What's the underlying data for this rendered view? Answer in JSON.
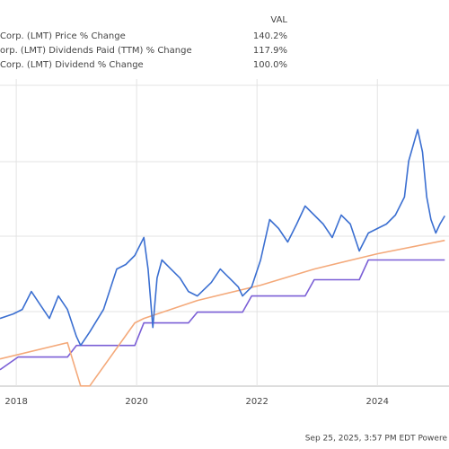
{
  "chart_data": {
    "type": "line",
    "header": "VAL",
    "footer": "Sep 25, 2025, 3:57 PM EDT  Powere",
    "xlim": [
      2017.73,
      2025.19
    ],
    "xticks": [
      2018,
      2020,
      2022,
      2024
    ],
    "ylim": [
      -15,
      265
    ],
    "grid": true,
    "series": [
      {
        "name": "Corp. (LMT) Dividend % Change",
        "legend_value": "100.0%",
        "color": "#7b5fd6",
        "x": [
          2017.73,
          2018.03,
          2018.85,
          2019.0,
          2019.97,
          2020.12,
          2020.86,
          2021.01,
          2021.76,
          2021.91,
          2022.8,
          2022.95,
          2023.7,
          2023.85,
          2025.12
        ],
        "values": [
          0,
          11.5,
          11.5,
          22.1,
          22.1,
          42.6,
          42.6,
          52.5,
          52.5,
          67.2,
          67.2,
          82.0,
          82.0,
          100,
          100
        ]
      },
      {
        "name": "orp. (LMT) Dividends Paid (TTM) % Change",
        "legend_value": "117.9%",
        "color": "#f4a97a",
        "x": [
          2017.73,
          2018.85,
          2019.07,
          2019.22,
          2019.97,
          2020.12,
          2021.01,
          2022.06,
          2022.95,
          2024.0,
          2025.12
        ],
        "values": [
          9.8,
          24.6,
          -14.8,
          -14.8,
          42.6,
          46.7,
          63.1,
          77.0,
          91.8,
          105.7,
          117.9
        ]
      },
      {
        "name": "Corp. (LMT) Price % Change",
        "legend_value": "140.2%",
        "color": "#3b6fd1",
        "x": [
          2017.73,
          2017.95,
          2018.1,
          2018.25,
          2018.4,
          2018.55,
          2018.7,
          2018.85,
          2019.0,
          2019.07,
          2019.22,
          2019.45,
          2019.67,
          2019.82,
          2019.97,
          2020.12,
          2020.19,
          2020.27,
          2020.34,
          2020.42,
          2020.57,
          2020.72,
          2020.86,
          2021.01,
          2021.24,
          2021.39,
          2021.54,
          2021.69,
          2021.76,
          2021.91,
          2022.06,
          2022.21,
          2022.36,
          2022.51,
          2022.66,
          2022.8,
          2022.95,
          2023.1,
          2023.25,
          2023.4,
          2023.55,
          2023.7,
          2023.85,
          2024.0,
          2024.15,
          2024.3,
          2024.45,
          2024.52,
          2024.67,
          2024.75,
          2024.82,
          2024.89,
          2024.97,
          2025.04,
          2025.12
        ],
        "values": [
          46.7,
          50.8,
          54.9,
          71.3,
          59.0,
          46.7,
          67.2,
          54.9,
          30.3,
          22.1,
          34.4,
          54.9,
          91.8,
          95.9,
          104.1,
          120.5,
          91.8,
          38.5,
          83.6,
          100,
          91.8,
          83.6,
          71.3,
          67.2,
          79.5,
          91.8,
          83.6,
          75.4,
          67.2,
          75.4,
          100,
          136.9,
          128.7,
          116.4,
          132.8,
          149.2,
          141.0,
          132.8,
          120.5,
          141.0,
          132.8,
          108.2,
          124.6,
          128.7,
          132.8,
          141.0,
          157.4,
          190.2,
          218.9,
          198.4,
          157.4,
          136.9,
          124.6,
          132.8,
          140.2
        ]
      }
    ]
  }
}
